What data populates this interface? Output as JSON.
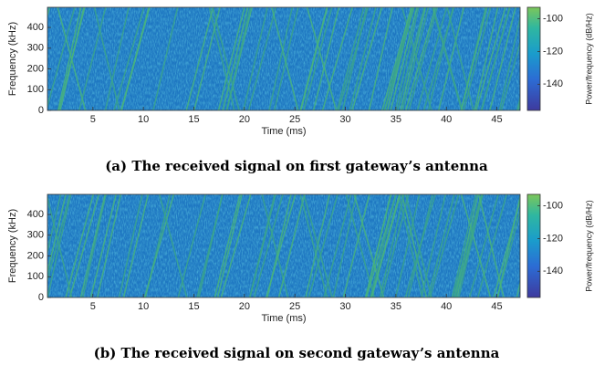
{
  "chart_data": [
    {
      "type": "spectrogram",
      "caption": "(a) The received signal on first gateway’s antenna",
      "xlabel": "Time (ms)",
      "ylabel": "Frequency (kHz)",
      "colorbar_label": "Power/frequency (dB/Hz)",
      "xlim": [
        0.5,
        47.3
      ],
      "xticks": [
        5,
        10,
        15,
        20,
        25,
        30,
        35,
        40,
        45
      ],
      "ylim": [
        0,
        497
      ],
      "yticks": [
        0,
        100,
        200,
        300,
        400
      ],
      "clim": [
        -156,
        -93
      ],
      "cticks": [
        -100,
        -120,
        -140
      ]
    },
    {
      "type": "spectrogram",
      "caption": "(b) The received signal on second gateway’s antenna",
      "xlabel": "Time (ms)",
      "ylabel": "Frequency (kHz)",
      "colorbar_label": "Power/frequency (dB/Hz)",
      "xlim": [
        0.5,
        47.3
      ],
      "xticks": [
        5,
        10,
        15,
        20,
        25,
        30,
        35,
        40,
        45
      ],
      "ylim": [
        0,
        497
      ],
      "yticks": [
        0,
        100,
        200,
        300,
        400
      ],
      "clim": [
        -156,
        -93
      ],
      "cticks": [
        -100,
        -120,
        -140
      ]
    }
  ]
}
